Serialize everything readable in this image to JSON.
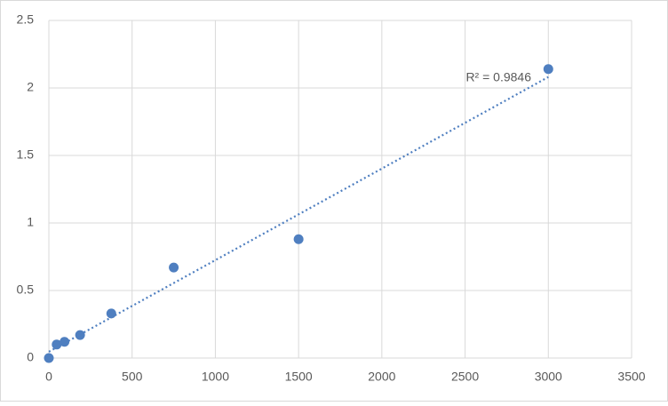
{
  "chart_data": {
    "type": "scatter",
    "x": [
      0,
      46.875,
      93.75,
      187.5,
      375,
      750,
      1500,
      3000
    ],
    "series": [
      {
        "color": "#4f7fc0",
        "values": [
          0,
          0.1,
          0.12,
          0.17,
          0.33,
          0.67,
          0.88,
          2.14
        ]
      }
    ],
    "xlim": [
      0,
      3500
    ],
    "xticks": [
      0,
      500,
      1000,
      1500,
      2000,
      2500,
      3000,
      3500
    ],
    "ylim": [
      0,
      2.5
    ],
    "yticks": [
      0,
      0.5,
      1,
      1.5,
      2,
      2.5
    ],
    "grid": true,
    "trendline": {
      "type": "linear",
      "style": "dotted",
      "color": "#4f7fc0",
      "label": "R² = 0.9846"
    }
  }
}
